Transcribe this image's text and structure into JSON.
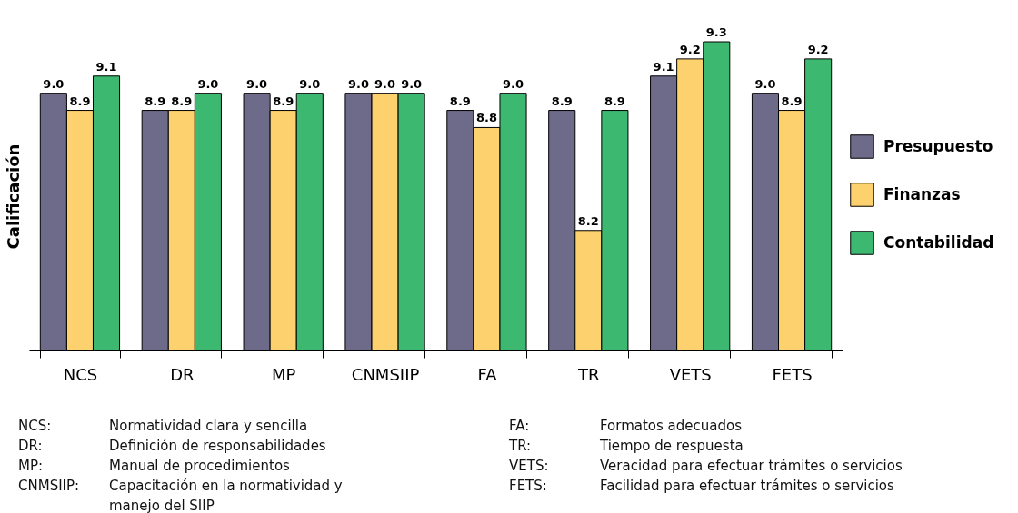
{
  "chart_data": {
    "type": "bar",
    "ylabel": "Calificación",
    "categories": [
      "NCS",
      "DR",
      "MP",
      "CNMSIIP",
      "FA",
      "TR",
      "VETS",
      "FETS"
    ],
    "series": [
      {
        "name": "Presupuesto",
        "color": "#6e6a8a",
        "values": [
          9.0,
          8.9,
          9.0,
          9.0,
          8.9,
          8.9,
          9.1,
          9.0
        ],
        "value_labels": [
          "9.0",
          "8.9",
          "9.0",
          "9.0",
          "8.9",
          "8.9",
          "9.1",
          "9.0"
        ]
      },
      {
        "name": "Finanzas",
        "color": "#fdd26e",
        "values": [
          8.9,
          8.9,
          8.9,
          9.0,
          8.8,
          8.2,
          9.2,
          8.9
        ],
        "value_labels": [
          "8.9",
          "8.9",
          "8.9",
          "9.0",
          "8.8",
          "8.2",
          "9.2",
          "8.9"
        ]
      },
      {
        "name": "Contabilidad",
        "color": "#3db870",
        "values": [
          9.1,
          9.0,
          9.0,
          9.0,
          9.0,
          8.9,
          9.3,
          9.2
        ],
        "value_labels": [
          "9.1",
          "9.0",
          "9.0",
          "9.0",
          "9.0",
          "8.9",
          "9.3",
          "9.2"
        ]
      }
    ],
    "ylim": [
      7.5,
      9.3
    ],
    "legend": "right",
    "annotations": [
      "NCS: Normatividad clara y sencilla",
      "DR: Definición de responsabilidades",
      "MP: Manual de procedimientos",
      "CNMSIIP: Capacitación en la normatividad y manejo del SIIP",
      "FA: Formatos adecuados",
      "TR: Tiempo de respuesta",
      "VETS: Veracidad para efectuar trámites o servicios",
      "FETS: Facilidad para efectuar trámites o servicios"
    ]
  }
}
